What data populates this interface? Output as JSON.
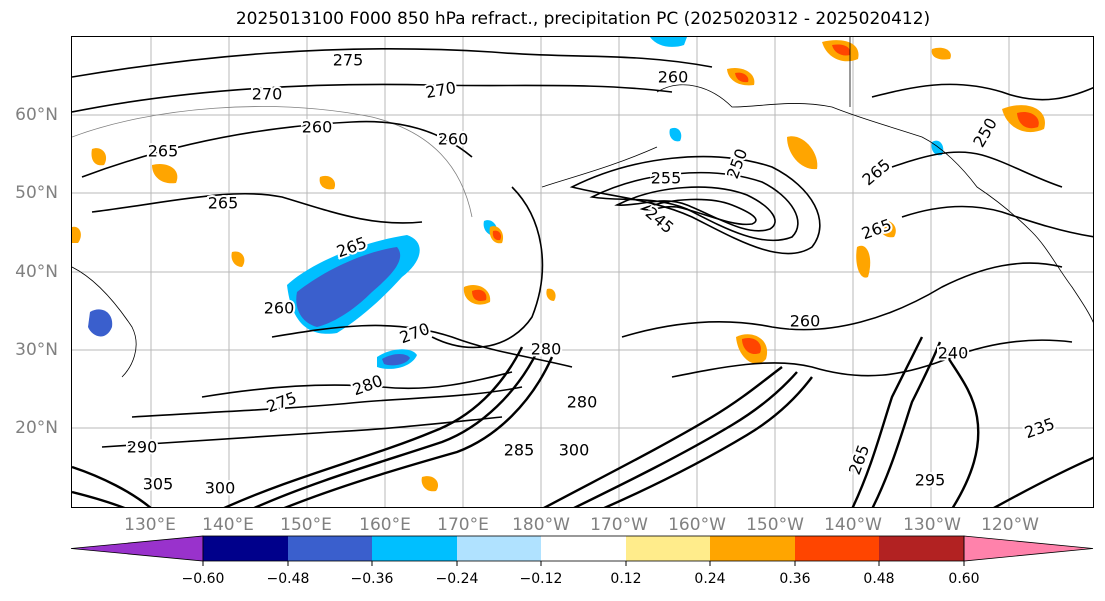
{
  "title": "2025013100 F000 850 hPa refract., precipitation PC (2025020312 - 2025020412)",
  "map": {
    "lat_labels": [
      "60°N",
      "50°N",
      "40°N",
      "30°N",
      "20°N"
    ],
    "lon_labels": [
      "130°E",
      "140°E",
      "150°E",
      "160°E",
      "170°E",
      "180°W",
      "170°W",
      "160°W",
      "150°W",
      "140°W",
      "130°W",
      "120°W"
    ],
    "contour_labels": [
      "275",
      "270",
      "260",
      "260",
      "265",
      "265",
      "260",
      "255",
      "250",
      "245",
      "265",
      "265",
      "260",
      "270",
      "265",
      "260",
      "280",
      "275",
      "280",
      "280",
      "285",
      "300",
      "290",
      "295",
      "305",
      "300",
      "240",
      "235",
      "265",
      "250",
      "270"
    ],
    "colors": {
      "grid": "#b8b8b8",
      "contour": "#000000",
      "coast": "#000000",
      "land_outline": "#7f7f7f"
    }
  },
  "colorbar": {
    "tick_labels": [
      "−0.60",
      "−0.48",
      "−0.36",
      "−0.24",
      "−0.12",
      "0.12",
      "0.24",
      "0.36",
      "0.48",
      "0.60"
    ],
    "colors": [
      "#9932cc",
      "#00008b",
      "#3a5fcd",
      "#00bfff",
      "#b0e2ff",
      "#ffffff",
      "#ffec8b",
      "#ffa500",
      "#ff4500",
      "#b22222",
      "#ff82ab"
    ]
  }
}
